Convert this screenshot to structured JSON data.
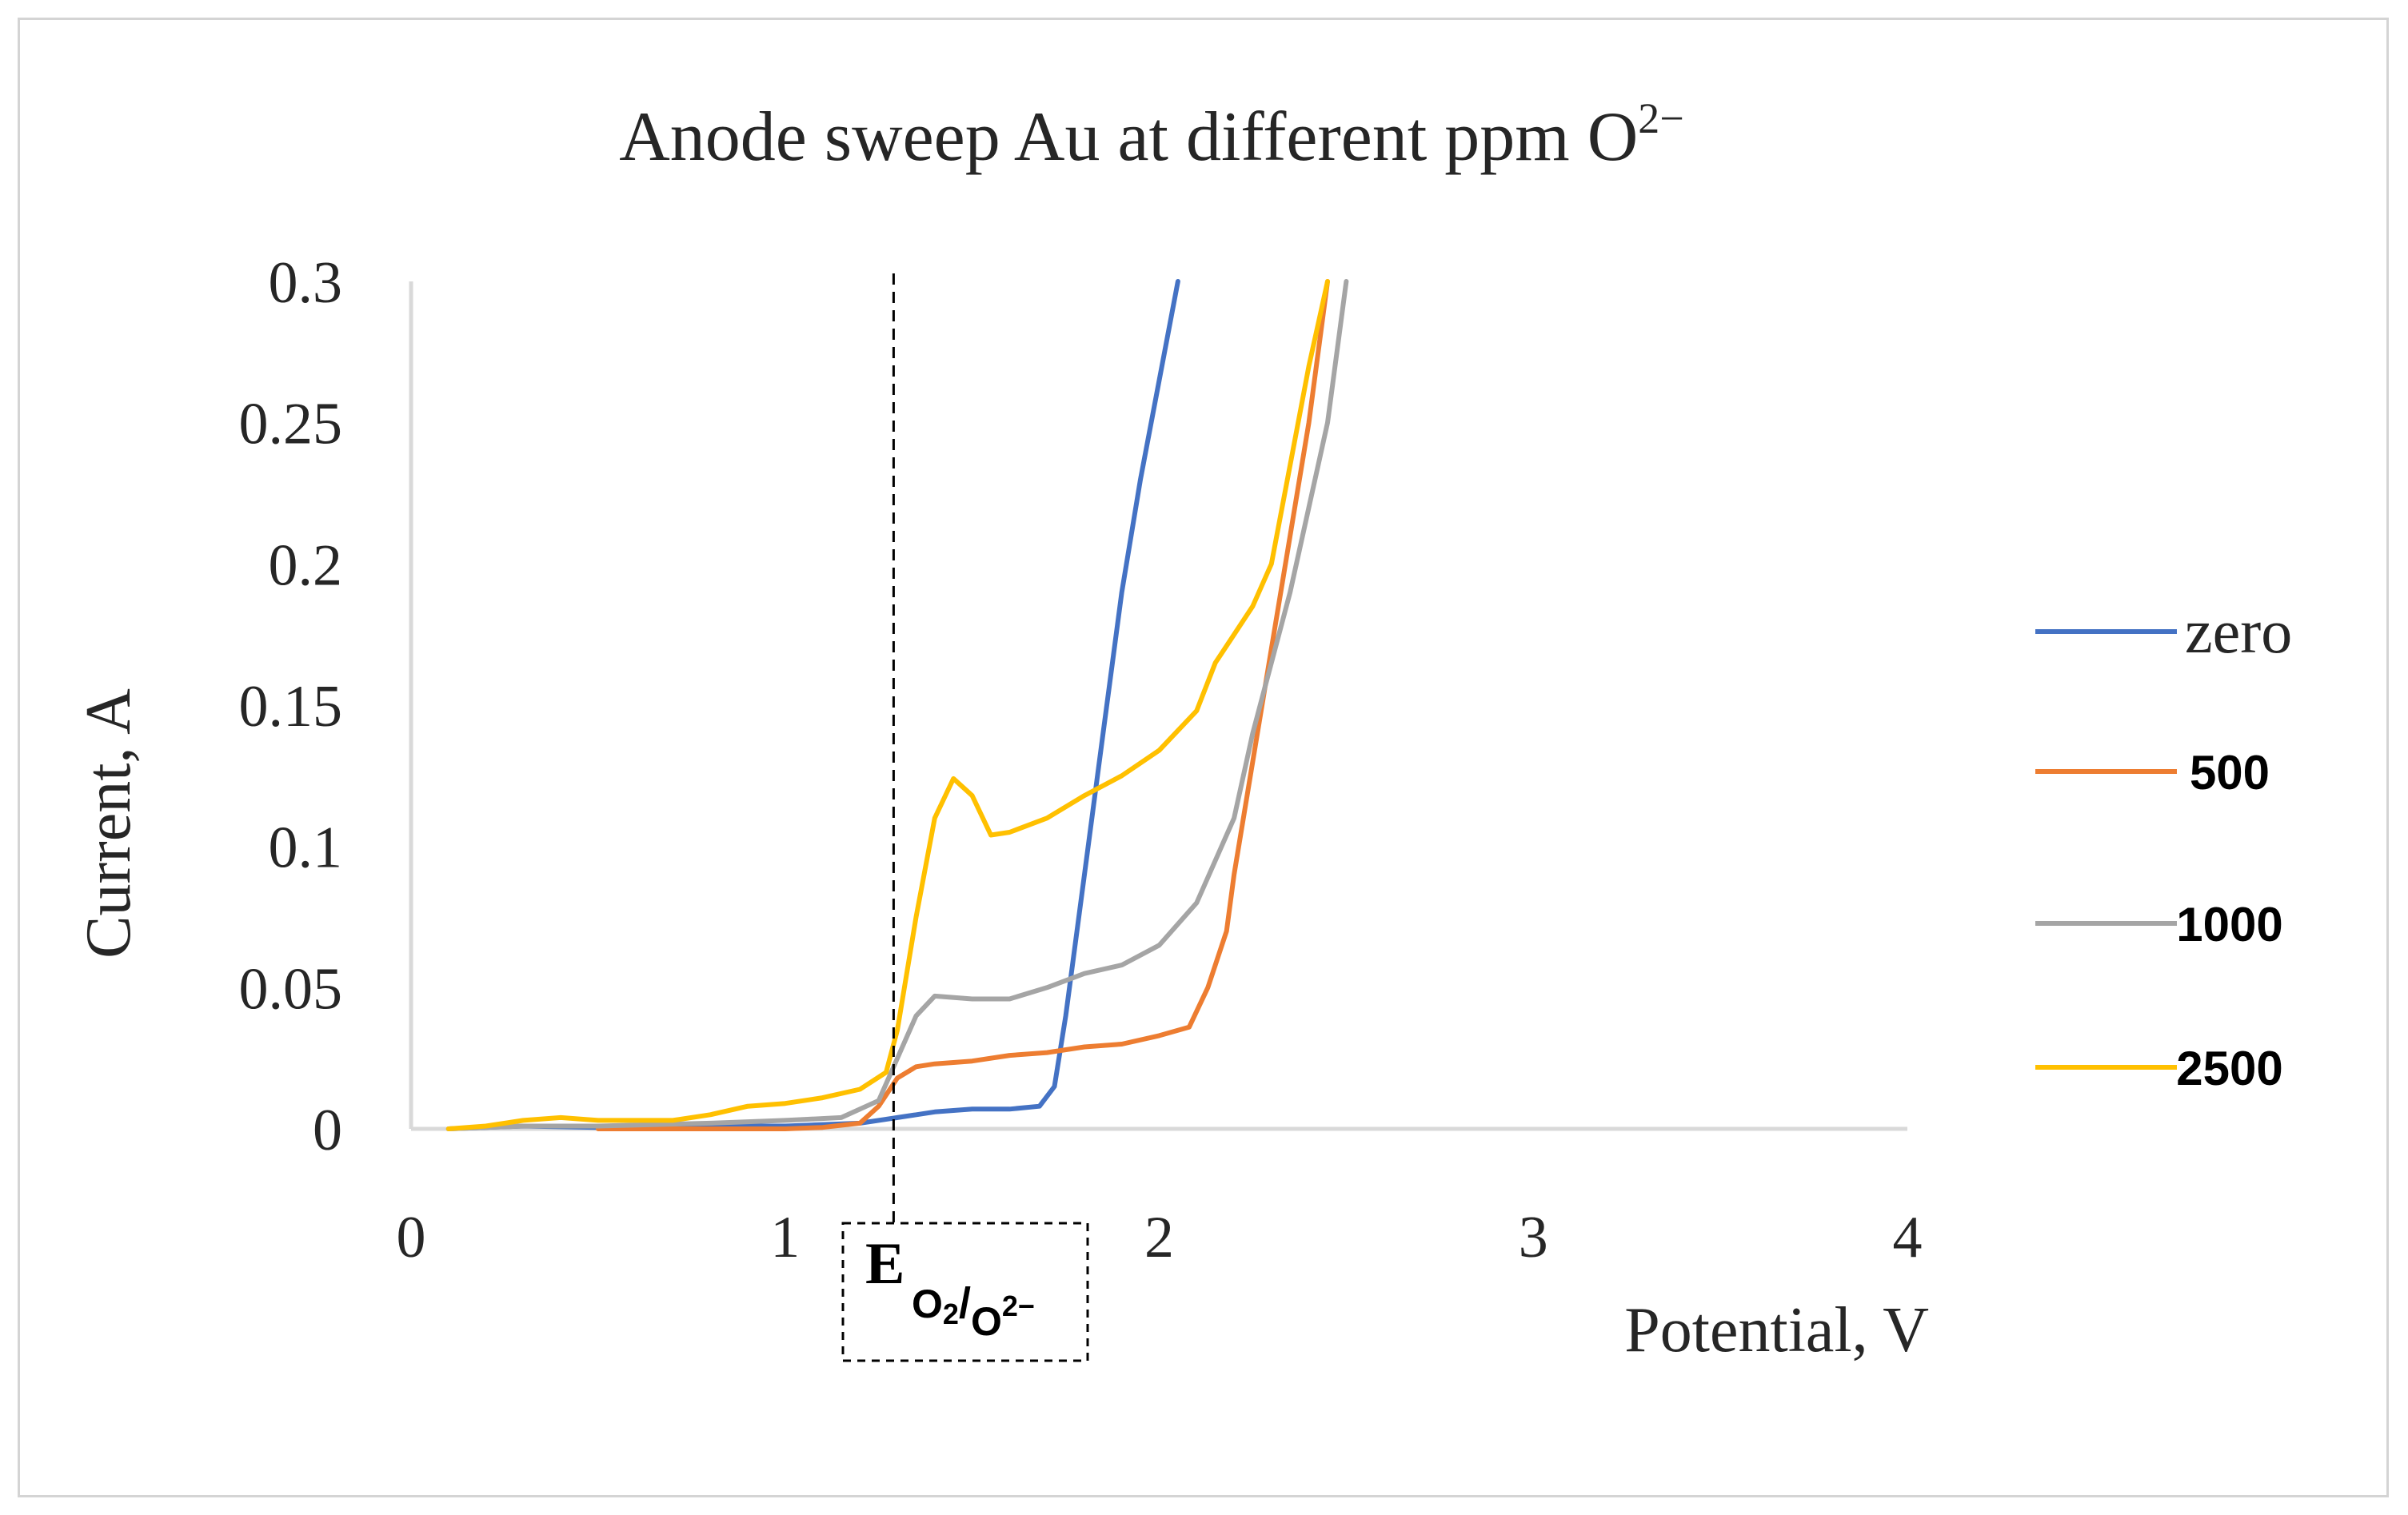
{
  "chart_data": {
    "type": "line",
    "title": "Anode sweep Au at different ppm O",
    "title_superscript": "2−",
    "xlabel": "Potential, V",
    "ylabel": "Current, A",
    "xlim": [
      0,
      4
    ],
    "ylim": [
      0,
      0.3
    ],
    "x_ticks": [
      "0",
      "1",
      "2",
      "3",
      "4"
    ],
    "y_ticks": [
      "0",
      "0.05",
      "0.1",
      "0.15",
      "0.2",
      "0.25",
      "0.3"
    ],
    "grid": false,
    "legend_position": "right",
    "annotation": {
      "x": 1.29,
      "label_main": "E",
      "label_sub_a": "O",
      "label_sub_a_sub": "2",
      "label_sub_sep": "/",
      "label_sub_b": "O",
      "label_sub_b_sup": "2−"
    },
    "series": [
      {
        "name": "zero",
        "color": "#4472C4",
        "points": [
          [
            0.1,
            0
          ],
          [
            0.3,
            0.001
          ],
          [
            0.5,
            0.0005
          ],
          [
            0.8,
            0.001
          ],
          [
            1.0,
            0.001
          ],
          [
            1.2,
            0.002
          ],
          [
            1.3,
            0.004
          ],
          [
            1.4,
            0.006
          ],
          [
            1.5,
            0.007
          ],
          [
            1.6,
            0.007
          ],
          [
            1.68,
            0.008
          ],
          [
            1.72,
            0.015
          ],
          [
            1.75,
            0.04
          ],
          [
            1.8,
            0.09
          ],
          [
            1.85,
            0.14
          ],
          [
            1.9,
            0.19
          ],
          [
            1.95,
            0.23
          ],
          [
            2.0,
            0.265
          ],
          [
            2.05,
            0.3
          ]
        ]
      },
      {
        "name": "500",
        "color": "#ED7D31",
        "points": [
          [
            0.5,
            0
          ],
          [
            0.8,
            0
          ],
          [
            1.0,
            0
          ],
          [
            1.1,
            0.0005
          ],
          [
            1.2,
            0.002
          ],
          [
            1.25,
            0.008
          ],
          [
            1.3,
            0.018
          ],
          [
            1.35,
            0.022
          ],
          [
            1.4,
            0.023
          ],
          [
            1.5,
            0.024
          ],
          [
            1.6,
            0.026
          ],
          [
            1.7,
            0.027
          ],
          [
            1.8,
            0.029
          ],
          [
            1.9,
            0.03
          ],
          [
            2.0,
            0.033
          ],
          [
            2.08,
            0.036
          ],
          [
            2.13,
            0.05
          ],
          [
            2.18,
            0.07
          ],
          [
            2.2,
            0.09
          ],
          [
            2.25,
            0.13
          ],
          [
            2.3,
            0.17
          ],
          [
            2.35,
            0.21
          ],
          [
            2.4,
            0.25
          ],
          [
            2.45,
            0.3
          ]
        ]
      },
      {
        "name": "1000",
        "color": "#A5A5A5",
        "points": [
          [
            0.1,
            0
          ],
          [
            0.3,
            0.001
          ],
          [
            0.5,
            0.001
          ],
          [
            0.8,
            0.002
          ],
          [
            1.0,
            0.003
          ],
          [
            1.15,
            0.004
          ],
          [
            1.25,
            0.01
          ],
          [
            1.3,
            0.025
          ],
          [
            1.35,
            0.04
          ],
          [
            1.4,
            0.047
          ],
          [
            1.5,
            0.046
          ],
          [
            1.6,
            0.046
          ],
          [
            1.7,
            0.05
          ],
          [
            1.8,
            0.055
          ],
          [
            1.9,
            0.058
          ],
          [
            2.0,
            0.065
          ],
          [
            2.1,
            0.08
          ],
          [
            2.15,
            0.095
          ],
          [
            2.2,
            0.11
          ],
          [
            2.25,
            0.14
          ],
          [
            2.3,
            0.165
          ],
          [
            2.35,
            0.19
          ],
          [
            2.4,
            0.22
          ],
          [
            2.45,
            0.25
          ],
          [
            2.5,
            0.3
          ]
        ]
      },
      {
        "name": "2500",
        "color": "#FFC000",
        "points": [
          [
            0.1,
            0
          ],
          [
            0.2,
            0.001
          ],
          [
            0.3,
            0.003
          ],
          [
            0.4,
            0.004
          ],
          [
            0.5,
            0.003
          ],
          [
            0.7,
            0.003
          ],
          [
            0.8,
            0.005
          ],
          [
            0.9,
            0.008
          ],
          [
            1.0,
            0.009
          ],
          [
            1.1,
            0.011
          ],
          [
            1.2,
            0.014
          ],
          [
            1.27,
            0.02
          ],
          [
            1.3,
            0.035
          ],
          [
            1.35,
            0.075
          ],
          [
            1.4,
            0.11
          ],
          [
            1.45,
            0.124
          ],
          [
            1.5,
            0.118
          ],
          [
            1.55,
            0.104
          ],
          [
            1.6,
            0.105
          ],
          [
            1.7,
            0.11
          ],
          [
            1.8,
            0.118
          ],
          [
            1.9,
            0.125
          ],
          [
            2.0,
            0.134
          ],
          [
            2.1,
            0.148
          ],
          [
            2.15,
            0.165
          ],
          [
            2.2,
            0.175
          ],
          [
            2.25,
            0.185
          ],
          [
            2.3,
            0.2
          ],
          [
            2.35,
            0.235
          ],
          [
            2.4,
            0.27
          ],
          [
            2.45,
            0.3
          ]
        ]
      }
    ]
  }
}
